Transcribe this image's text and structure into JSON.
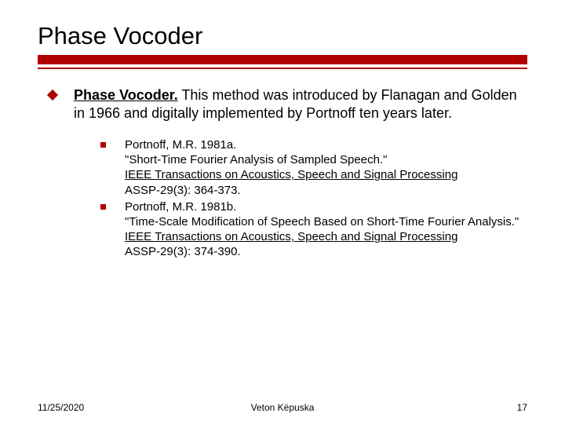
{
  "title": "Phase Vocoder",
  "colors": {
    "accent": "#b00000",
    "text": "#000000",
    "background": "#ffffff"
  },
  "main": {
    "lead_bold": "Phase Vocoder.",
    "lead_rest": " This method was introduced by Flanagan and Golden in 1966 and digitally implemented by Portnoff ten years later."
  },
  "refs": [
    {
      "author_year": "Portnoff, M.R. 1981a.",
      "paper_title": "\"Short-Time Fourier Analysis of Sampled Speech.\"",
      "journal": "IEEE Transactions on Acoustics, Speech and Signal Processing",
      "citation": "ASSP-29(3): 364-373."
    },
    {
      "author_year": "Portnoff, M.R. 1981b.",
      "paper_title": "\"Time-Scale Modification of Speech Based on Short-Time Fourier Analysis.\"",
      "journal": "IEEE Transactions on Acoustics, Speech and Signal Processing",
      "citation": "ASSP-29(3): 374-390."
    }
  ],
  "footer": {
    "date": "11/25/2020",
    "author": "Veton Këpuska",
    "page": "17"
  }
}
